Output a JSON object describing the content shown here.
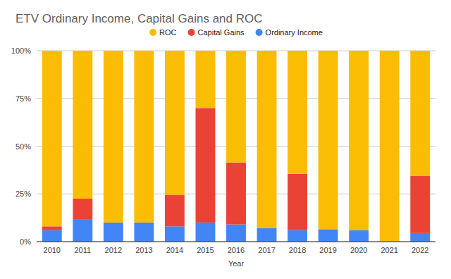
{
  "chart_data": {
    "type": "bar",
    "title": "ETV Ordinary Income, Capital Gains and ROC",
    "x_label": "Year",
    "stacked": true,
    "grid": true,
    "legend": "top",
    "categories": [
      "2010",
      "2011",
      "2012",
      "2013",
      "2014",
      "2015",
      "2016",
      "2017",
      "2018",
      "2019",
      "2020",
      "2021",
      "2022"
    ],
    "series": [
      {
        "name": "Ordinary Income",
        "color": "#4285f4",
        "values": [
          6,
          11.5,
          10,
          10,
          8,
          10,
          9,
          7,
          6,
          6.5,
          6,
          0,
          4.5
        ]
      },
      {
        "name": "Capital Gains",
        "color": "#ea4335",
        "values": [
          2,
          11,
          0,
          0,
          16.5,
          60,
          32.5,
          0,
          29.5,
          0,
          0,
          0,
          30
        ]
      },
      {
        "name": "ROC",
        "color": "#fbbc04",
        "values": [
          92,
          77.5,
          90,
          90,
          75.5,
          30,
          58.5,
          93,
          64.5,
          93.5,
          94,
          100,
          65.5
        ]
      }
    ],
    "ylim": [
      0,
      100
    ],
    "yticks": [
      {
        "value": 0,
        "label": "0%"
      },
      {
        "value": 25,
        "label": "25%"
      },
      {
        "value": 50,
        "label": "50%"
      },
      {
        "value": 75,
        "label": "75%"
      },
      {
        "value": 100,
        "label": "100%"
      }
    ]
  }
}
